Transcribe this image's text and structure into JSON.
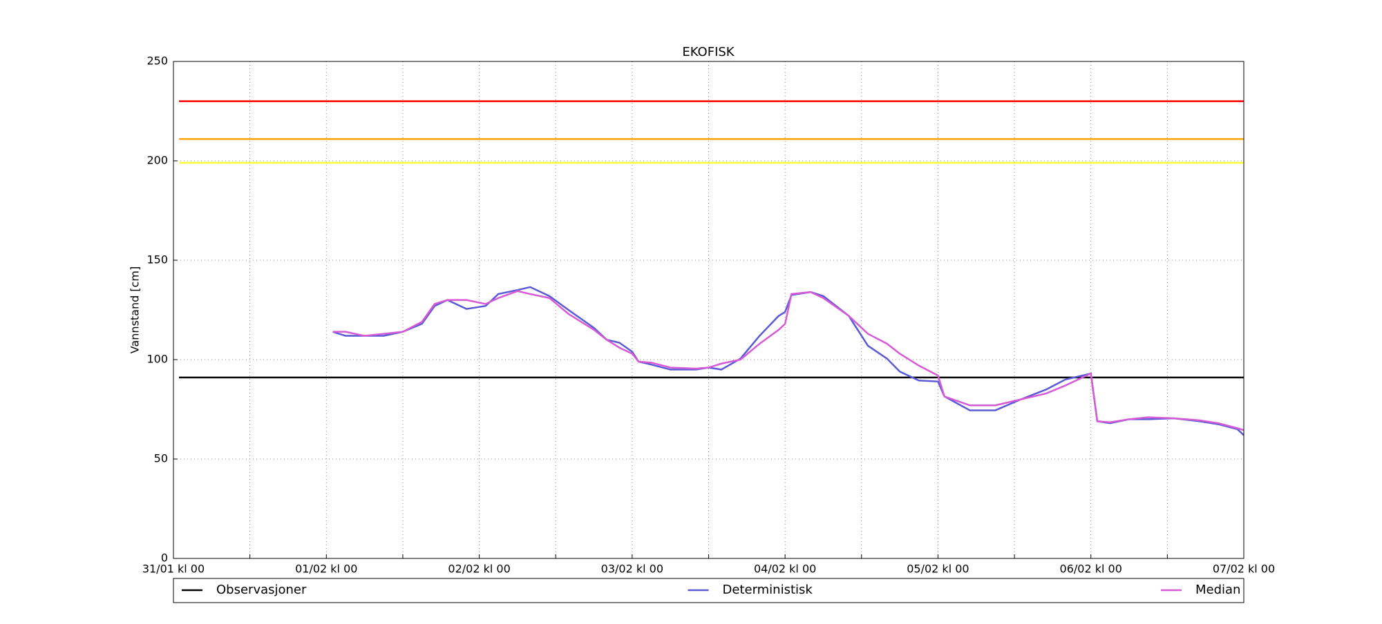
{
  "chart_data": {
    "type": "line",
    "title": "EKOFISK",
    "y_label": "Vannstand [cm]",
    "x": [
      25,
      27,
      30,
      33,
      36,
      39,
      41,
      43,
      46,
      49,
      51,
      54,
      56,
      59,
      62,
      66,
      68,
      70,
      72,
      73,
      75,
      78,
      82,
      84,
      86,
      89,
      92,
      95,
      96,
      97,
      100,
      102,
      106,
      109,
      112,
      114,
      117,
      120,
      121,
      125,
      129,
      133,
      137,
      140,
      144,
      145,
      147,
      150,
      153,
      157,
      161,
      164,
      167,
      168
    ],
    "series": [
      {
        "name": "Observasjoner",
        "color": "#000000",
        "values": [
          null,
          null,
          null,
          null,
          null,
          null,
          null,
          null,
          null,
          null,
          null,
          null,
          null,
          null,
          null,
          null,
          null,
          null,
          null,
          null,
          null,
          null,
          null,
          null,
          null,
          null,
          null,
          null,
          null,
          null,
          null,
          null,
          null,
          null,
          null,
          null,
          null,
          null,
          null,
          null,
          null,
          null,
          null,
          null,
          null,
          null,
          null,
          null,
          null,
          null,
          null,
          null,
          null,
          null
        ]
      },
      {
        "name": "Deterministisk",
        "color": "#5a5ad6",
        "values": [
          114,
          112,
          112,
          112,
          114,
          118,
          127,
          130,
          125.5,
          127,
          133,
          135,
          136.5,
          132,
          125,
          116,
          110,
          108.5,
          104,
          99,
          97.5,
          95,
          95,
          96,
          95,
          100.5,
          112,
          122,
          124,
          132.5,
          134,
          132,
          122,
          107,
          100.5,
          94,
          89.5,
          89,
          81.5,
          74.5,
          74.5,
          80,
          85,
          90,
          93,
          69,
          68,
          70,
          70,
          70.5,
          69,
          67.5,
          65,
          62
        ]
      },
      {
        "name": "Median",
        "color": "#d65ad6",
        "values": [
          114,
          114,
          112,
          113,
          114,
          119,
          128,
          130,
          130,
          128,
          131,
          134.5,
          133,
          131,
          123,
          115,
          110,
          106,
          103,
          99,
          98.5,
          96,
          95.5,
          96,
          98,
          100,
          108,
          115,
          118,
          133,
          134,
          131,
          122,
          113,
          108,
          103,
          97,
          92,
          81.5,
          77,
          77,
          80,
          83,
          87,
          93,
          69,
          68.5,
          70,
          71,
          70.5,
          69.5,
          68,
          65.5,
          64.5
        ]
      }
    ],
    "reference_lines": [
      {
        "value": 230,
        "color": "#ff0000"
      },
      {
        "value": 211,
        "color": "#ffa500"
      },
      {
        "value": 199,
        "color": "#ffff33"
      },
      {
        "value": 91,
        "color": "#000000"
      }
    ],
    "xlim": [
      0,
      168
    ],
    "xticks": [
      {
        "value": 0,
        "label": "31/01 kl 00"
      },
      {
        "value": 24,
        "label": "01/02 kl 00"
      },
      {
        "value": 48,
        "label": "02/02 kl 00"
      },
      {
        "value": 72,
        "label": "03/02 kl 00"
      },
      {
        "value": 96,
        "label": "04/02 kl 00"
      },
      {
        "value": 120,
        "label": "05/02 kl 00"
      },
      {
        "value": 144,
        "label": "06/02 kl 00"
      },
      {
        "value": 168,
        "label": "07/02 kl 00"
      }
    ],
    "minor_xticks": [
      12,
      36,
      60,
      84,
      108,
      132,
      156
    ],
    "ylim": [
      0,
      250
    ],
    "yticks": [
      0,
      50,
      100,
      150,
      200,
      250
    ],
    "grid": true
  }
}
